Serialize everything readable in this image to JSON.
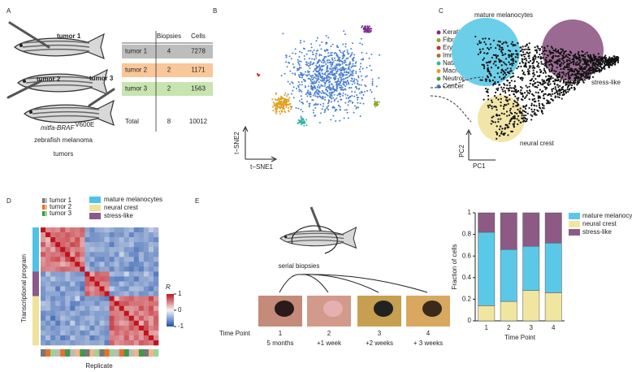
{
  "panels": [
    "A",
    "B",
    "C",
    "D",
    "E"
  ],
  "panel_a": {
    "fish_labels": [
      "tumor 1",
      "tumor 2",
      "tumor 3"
    ],
    "table": {
      "header": [
        "Biopsies",
        "Cells"
      ],
      "rows": [
        [
          "tumor 1",
          "4",
          "7278"
        ],
        [
          "tumor 2",
          "2",
          "1171"
        ],
        [
          "tumor 3",
          "2",
          "1563"
        ],
        [
          "Total",
          "8",
          "10012"
        ]
      ]
    },
    "genotype": "mitfa-BRAF",
    "genotype_superscript": "V600E",
    "caption": [
      "zebrafish melanoma",
      "tumors"
    ]
  },
  "panel_b": {
    "x_label": "t−SNE1",
    "y_label": "t−SNE2"
  },
  "panel_c": {
    "legend": [
      {
        "name": "Keratinocytes",
        "color": "#7b2d8e"
      },
      {
        "name": "Fibroblasts",
        "color": "#8da62c"
      },
      {
        "name": "Erythrocytes",
        "color": "#c8302a"
      },
      {
        "name": "Immune (other)",
        "color": "#b0702a"
      },
      {
        "name": "Natural killers",
        "color": "#3cb4a6"
      },
      {
        "name": "Macrophages",
        "color": "#e0a020"
      },
      {
        "name": "Neutrophils",
        "color": "#5a9a3a"
      },
      {
        "name": "Cancer",
        "color": "#4a7fd0"
      }
    ],
    "states": [
      "mature melanocytes",
      "stress-like",
      "neural crest"
    ],
    "x_label": "PC1",
    "y_label": "PC2"
  },
  "panel_d": {
    "tumors": [
      "tumor 1",
      "tumor 2",
      "tumor 3"
    ],
    "programs": [
      {
        "name": "mature melanocytes",
        "color": "#4fc3e6"
      },
      {
        "name": "neural crest",
        "color": "#efe29a"
      },
      {
        "name": "stress-like",
        "color": "#8b5a8a"
      }
    ],
    "colorbar_title": "R",
    "colorbar_ticks": [
      1,
      0,
      -1
    ],
    "y_label": "Transcriptional program",
    "x_label": "Replicate"
  },
  "panel_e": {
    "title": "serial biopsies",
    "time_label": "Time Point",
    "time_points": [
      [
        "1",
        "5 months"
      ],
      [
        "2",
        "+1 week"
      ],
      [
        "3",
        "+2 weeks"
      ],
      [
        "4",
        "+ 3 weeks"
      ]
    ]
  },
  "chart_data": {
    "type": "stacked_bar",
    "categories": [
      "1",
      "2",
      "3",
      "4"
    ],
    "series": [
      {
        "name": "mature melanocytes",
        "color": "#5bc8e8",
        "values": [
          0.68,
          0.48,
          0.41,
          0.46
        ]
      },
      {
        "name": "neural crest",
        "color": "#f1e6a0",
        "values": [
          0.14,
          0.18,
          0.28,
          0.26
        ]
      },
      {
        "name": "stress-like",
        "color": "#8c5a85",
        "values": [
          0.18,
          0.34,
          0.31,
          0.28
        ]
      }
    ],
    "ylim": [
      0,
      1
    ],
    "yticks": [
      0,
      0.2,
      0.4,
      0.6,
      0.8,
      1
    ],
    "y_label": "Fraction of cells",
    "x_label": "Time Point"
  }
}
